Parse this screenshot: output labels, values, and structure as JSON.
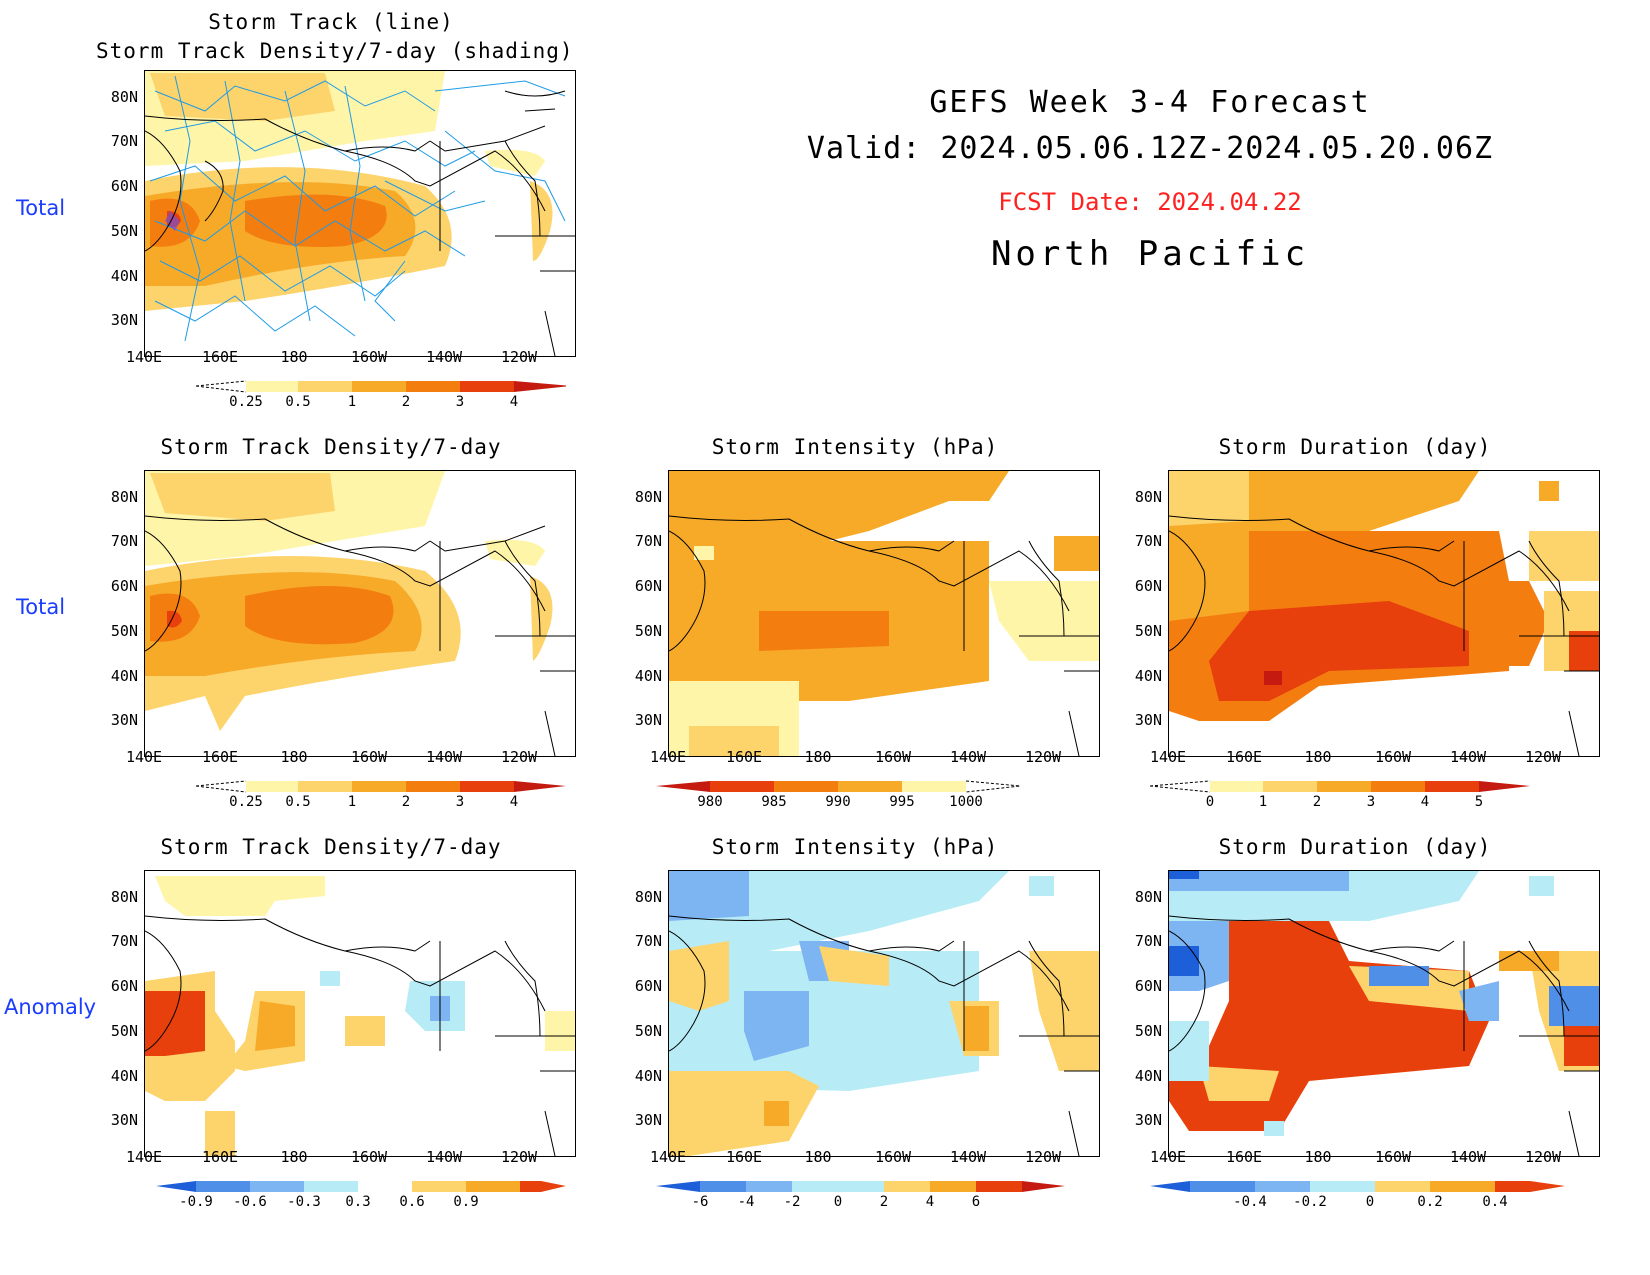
{
  "header": {
    "title": "GEFS Week 3-4 Forecast",
    "valid": "Valid: 2024.05.06.12Z-2024.05.20.06Z",
    "fcst_date": "FCST Date: 2024.04.22",
    "region": "North Pacific"
  },
  "row_labels": {
    "top": "Total",
    "middle": "Total",
    "bottom": "Anomaly"
  },
  "map_axes": {
    "lat_labels": [
      "80N",
      "70N",
      "60N",
      "50N",
      "40N",
      "30N"
    ],
    "lon_labels": [
      "140E",
      "160E",
      "180",
      "160W",
      "140W",
      "120W"
    ]
  },
  "panels": {
    "track": {
      "title_line1": "Storm Track (line)",
      "title_line2": "Storm Track Density/7-day (shading)",
      "colorbar": [
        "0.25",
        "0.5",
        "1",
        "2",
        "3",
        "4"
      ]
    },
    "density_total": {
      "title": "Storm Track Density/7-day",
      "colorbar": [
        "0.25",
        "0.5",
        "1",
        "2",
        "3",
        "4"
      ]
    },
    "intensity_total": {
      "title": "Storm Intensity (hPa)",
      "colorbar": [
        "980",
        "985",
        "990",
        "995",
        "1000"
      ]
    },
    "duration_total": {
      "title": "Storm Duration (day)",
      "colorbar": [
        "0",
        "1",
        "2",
        "3",
        "4",
        "5"
      ]
    },
    "density_anom": {
      "title": "Storm Track Density/7-day",
      "colorbar": [
        "-0.9",
        "-0.6",
        "-0.3",
        "0.3",
        "0.6",
        "0.9"
      ]
    },
    "intensity_anom": {
      "title": "Storm Intensity (hPa)",
      "colorbar": [
        "-6",
        "-4",
        "-2",
        "0",
        "2",
        "4",
        "6"
      ]
    },
    "duration_anom": {
      "title": "Storm Duration (day)",
      "colorbar": [
        "-0.4",
        "-0.2",
        "0",
        "0.2",
        "0.4"
      ]
    }
  },
  "colors": {
    "warm_scale": [
      "#fff5a8",
      "#fdd36b",
      "#f7a928",
      "#f47d10",
      "#e8400c",
      "#c41a10"
    ],
    "cool_scale": [
      "#1c5fd8",
      "#4f8fe8",
      "#7db4f2",
      "#b7ecf7"
    ],
    "track_line": "#1e9be6",
    "title_blue": "#1a3cff",
    "fcst_red": "#ff2020"
  }
}
